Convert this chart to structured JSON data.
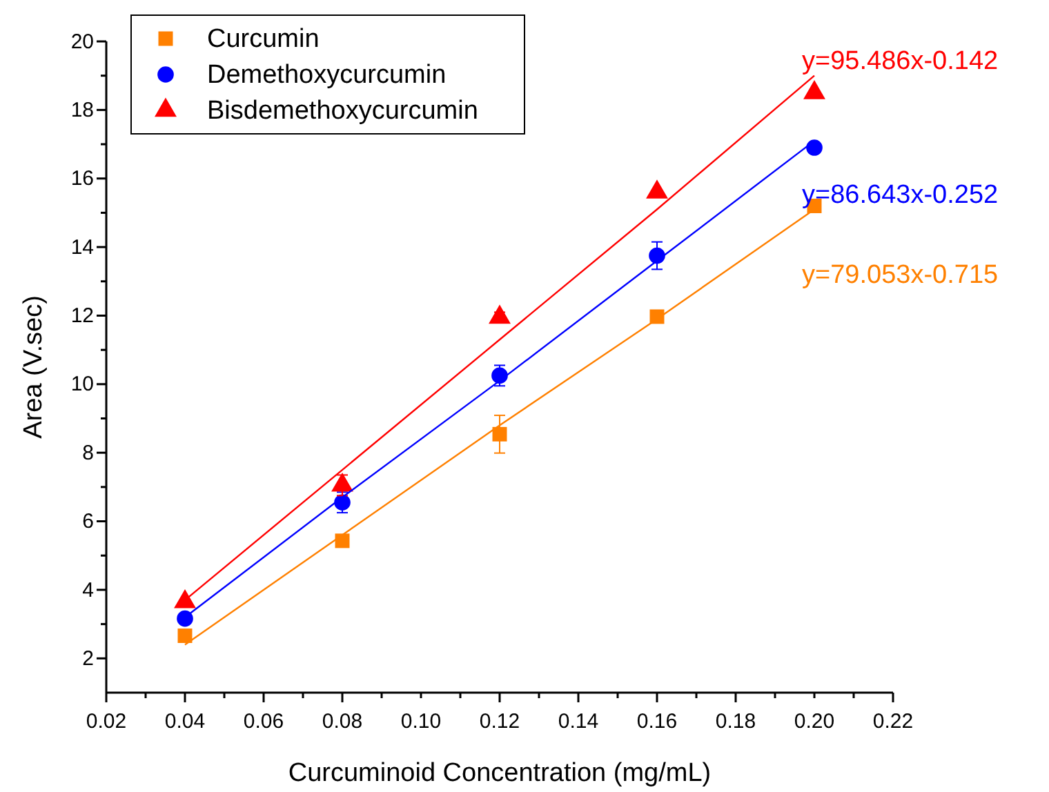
{
  "chart_data": {
    "type": "scatter",
    "xlabel": "Curcuminoid Concentration (mg/mL)",
    "ylabel": "Area (V.sec)",
    "x": [
      0.04,
      0.08,
      0.12,
      0.16,
      0.2
    ],
    "series": [
      {
        "name": "Curcumin",
        "color": "#ff8000",
        "marker": "square",
        "values": [
          2.66,
          5.43,
          8.54,
          11.97,
          15.2
        ],
        "errors": [
          null,
          0.15,
          0.55,
          null,
          null
        ]
      },
      {
        "name": "Demethoxycurcumin",
        "color": "#0000ff",
        "marker": "circle",
        "values": [
          3.16,
          6.55,
          10.25,
          13.75,
          16.9
        ],
        "errors": [
          null,
          0.3,
          0.3,
          0.4,
          null
        ]
      },
      {
        "name": "Bisdemethoxycurcumin",
        "color": "#ff0000",
        "marker": "triangle",
        "values": [
          3.65,
          7.05,
          11.95,
          15.6,
          18.5
        ],
        "errors": [
          null,
          0.3,
          0.15,
          null,
          null
        ]
      },
      {
        "type": "line",
        "color": "#ff0000",
        "values": [
          3.7,
          7.5,
          11.3,
          15.1,
          19.0
        ]
      },
      {
        "type": "line",
        "color": "#0000ff",
        "values": [
          3.2,
          6.7,
          10.1,
          13.6,
          17.1
        ]
      },
      {
        "type": "line",
        "color": "#ff8000",
        "values": [
          2.4,
          5.6,
          8.8,
          11.9,
          15.1
        ]
      }
    ],
    "annotations": [
      "y=95.486x-0.142",
      "y=86.643x-0.252",
      "y=79.053x-0.715"
    ],
    "xlim": [
      0.02,
      0.22
    ],
    "xticks": [
      0.02,
      {
        "value": 0.03,
        "label": null
      },
      0.04,
      {
        "value": 0.05,
        "label": null
      },
      0.06,
      {
        "value": 0.07,
        "label": null
      },
      0.08,
      {
        "value": 0.09,
        "label": null
      },
      {
        "value": 0.1,
        "label": "0.10"
      },
      {
        "value": 0.11,
        "label": null
      },
      0.12,
      {
        "value": 0.13,
        "label": null
      },
      0.14,
      {
        "value": 0.15,
        "label": null
      },
      0.16,
      {
        "value": 0.17,
        "label": null
      },
      0.18,
      {
        "value": 0.19,
        "label": null
      },
      {
        "value": 0.2,
        "label": "0.20"
      },
      {
        "value": 0.21,
        "label": null
      },
      0.22
    ],
    "ylim": [
      1,
      20
    ],
    "yticks": [
      2,
      {
        "value": 3,
        "label": null
      },
      4,
      {
        "value": 5,
        "label": null
      },
      6,
      {
        "value": 7,
        "label": null
      },
      8,
      {
        "value": 9,
        "label": null
      },
      10,
      {
        "value": 11,
        "label": null
      },
      12,
      {
        "value": 13,
        "label": null
      },
      14,
      {
        "value": 15,
        "label": null
      },
      16,
      {
        "value": 17,
        "label": null
      },
      18,
      {
        "value": 19,
        "label": null
      },
      20
    ],
    "legend": "top left",
    "grid": false
  }
}
